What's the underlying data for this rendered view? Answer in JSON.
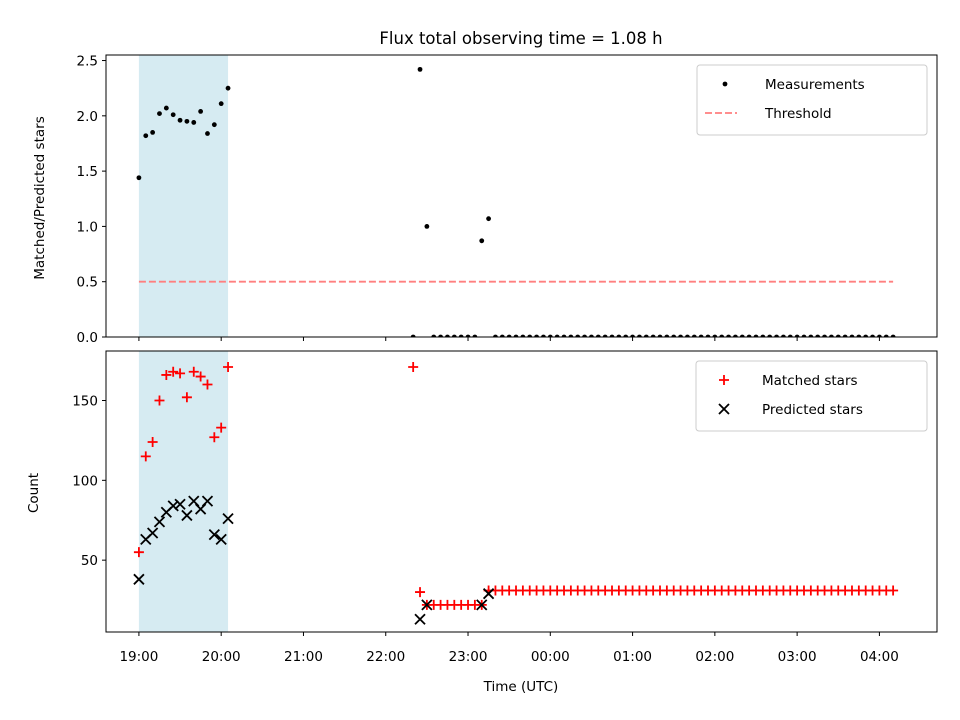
{
  "chart_data": [
    {
      "type": "scatter",
      "title": "Flux total observing time = 1.08 h",
      "xlabel": "",
      "ylabel": "Matched/Predicted stars",
      "ylim": [
        0,
        2.55
      ],
      "yticks": [
        "0.0",
        "0.5",
        "1.0",
        "1.5",
        "2.0",
        "2.5"
      ],
      "ytick_values": [
        0,
        0.5,
        1.0,
        1.5,
        2.0,
        2.5
      ],
      "xlim": [
        "18:36",
        "04:42"
      ],
      "shaded_interval": [
        "19:00",
        "20:05"
      ],
      "shaded_color": "#add8e6",
      "legend_position": "top-right",
      "series": [
        {
          "name": "Measurements",
          "marker": "dot",
          "color": "#000000",
          "x": [
            "19:00",
            "19:05",
            "19:10",
            "19:15",
            "19:20",
            "19:25",
            "19:30",
            "19:35",
            "19:40",
            "19:45",
            "19:50",
            "19:55",
            "20:00",
            "20:05",
            "22:20",
            "22:25",
            "22:30",
            "22:35",
            "22:40",
            "22:45",
            "22:50",
            "22:55",
            "23:00",
            "23:05",
            "23:10",
            "23:15",
            "23:20",
            "23:25",
            "23:30",
            "23:35",
            "23:40",
            "23:45",
            "23:50",
            "23:55",
            "00:00",
            "00:05",
            "00:10",
            "00:15",
            "00:20",
            "00:25",
            "00:30",
            "00:35",
            "00:40",
            "00:45",
            "00:50",
            "00:55",
            "01:00",
            "01:05",
            "01:10",
            "01:15",
            "01:20",
            "01:25",
            "01:30",
            "01:35",
            "01:40",
            "01:45",
            "01:50",
            "01:55",
            "02:00",
            "02:05",
            "02:10",
            "02:15",
            "02:20",
            "02:25",
            "02:30",
            "02:35",
            "02:40",
            "02:45",
            "02:50",
            "02:55",
            "03:00",
            "03:05",
            "03:10",
            "03:15",
            "03:20",
            "03:25",
            "03:30",
            "03:35",
            "03:40",
            "03:45",
            "03:50",
            "03:55",
            "04:00",
            "04:05",
            "04:10"
          ],
          "y": [
            1.44,
            1.82,
            1.85,
            2.02,
            2.07,
            2.01,
            1.96,
            1.95,
            1.94,
            2.04,
            1.84,
            1.92,
            2.11,
            2.25,
            0,
            2.42,
            1.0,
            0,
            0,
            0,
            0,
            0,
            0,
            0,
            0.87,
            1.07,
            0,
            0,
            0,
            0,
            0,
            0,
            0,
            0,
            0,
            0,
            0,
            0,
            0,
            0,
            0,
            0,
            0,
            0,
            0,
            0,
            0,
            0,
            0,
            0,
            0,
            0,
            0,
            0,
            0,
            0,
            0,
            0,
            0,
            0,
            0,
            0,
            0,
            0,
            0,
            0,
            0,
            0,
            0,
            0,
            0,
            0,
            0,
            0,
            0,
            0,
            0,
            0,
            0,
            0,
            0,
            0,
            0,
            0,
            0
          ]
        },
        {
          "name": "Threshold",
          "type": "line",
          "dashed": true,
          "color": "#ff7f7f",
          "x": [
            "19:00",
            "04:10"
          ],
          "y": [
            0.5,
            0.5
          ]
        }
      ]
    },
    {
      "type": "scatter",
      "title": "",
      "xlabel": "Time (UTC)",
      "ylabel": "Count",
      "ylim": [
        5,
        181
      ],
      "yticks": [
        "50",
        "100",
        "150"
      ],
      "ytick_values": [
        50,
        100,
        150
      ],
      "xlim": [
        "18:36",
        "04:42"
      ],
      "xticks": [
        "19:00",
        "20:00",
        "21:00",
        "22:00",
        "23:00",
        "00:00",
        "01:00",
        "02:00",
        "03:00",
        "04:00"
      ],
      "shaded_interval": [
        "19:00",
        "20:05"
      ],
      "shaded_color": "#add8e6",
      "legend_position": "top-right",
      "series": [
        {
          "name": "Matched stars",
          "marker": "plus",
          "color": "#ff0000",
          "x": [
            "19:00",
            "19:05",
            "19:10",
            "19:15",
            "19:20",
            "19:25",
            "19:30",
            "19:35",
            "19:40",
            "19:45",
            "19:50",
            "19:55",
            "20:00",
            "20:05",
            "22:20",
            "22:25",
            "22:30",
            "22:35",
            "22:40",
            "22:45",
            "22:50",
            "22:55",
            "23:00",
            "23:05",
            "23:10",
            "23:15",
            "23:20",
            "23:25",
            "23:30",
            "23:35",
            "23:40",
            "23:45",
            "23:50",
            "23:55",
            "00:00",
            "00:05",
            "00:10",
            "00:15",
            "00:20",
            "00:25",
            "00:30",
            "00:35",
            "00:40",
            "00:45",
            "00:50",
            "00:55",
            "01:00",
            "01:05",
            "01:10",
            "01:15",
            "01:20",
            "01:25",
            "01:30",
            "01:35",
            "01:40",
            "01:45",
            "01:50",
            "01:55",
            "02:00",
            "02:05",
            "02:10",
            "02:15",
            "02:20",
            "02:25",
            "02:30",
            "02:35",
            "02:40",
            "02:45",
            "02:50",
            "02:55",
            "03:00",
            "03:05",
            "03:10",
            "03:15",
            "03:20",
            "03:25",
            "03:30",
            "03:35",
            "03:40",
            "03:45",
            "03:50",
            "03:55",
            "04:00",
            "04:05",
            "04:10"
          ],
          "y": [
            55,
            115,
            124,
            150,
            166,
            168,
            167,
            152,
            168,
            165,
            160,
            127,
            133,
            171,
            171,
            30,
            22,
            22,
            22,
            22,
            22,
            22,
            22,
            22,
            22,
            31,
            31,
            31,
            31,
            31,
            31,
            31,
            31,
            31,
            31,
            31,
            31,
            31,
            31,
            31,
            31,
            31,
            31,
            31,
            31,
            31,
            31,
            31,
            31,
            31,
            31,
            31,
            31,
            31,
            31,
            31,
            31,
            31,
            31,
            31,
            31,
            31,
            31,
            31,
            31,
            31,
            31,
            31,
            31,
            31,
            31,
            31,
            31,
            31,
            31,
            31,
            31,
            31,
            31,
            31,
            31,
            31,
            31,
            31,
            31
          ]
        },
        {
          "name": "Predicted stars",
          "marker": "x",
          "color": "#000000",
          "x": [
            "19:00",
            "19:05",
            "19:10",
            "19:15",
            "19:20",
            "19:25",
            "19:30",
            "19:35",
            "19:40",
            "19:45",
            "19:50",
            "19:55",
            "20:00",
            "20:05",
            "22:25",
            "22:30",
            "23:10",
            "23:15"
          ],
          "y": [
            38,
            63,
            67,
            74,
            80,
            84,
            85,
            78,
            87,
            82,
            87,
            66,
            63,
            76,
            13,
            22,
            22,
            29
          ]
        }
      ]
    }
  ]
}
